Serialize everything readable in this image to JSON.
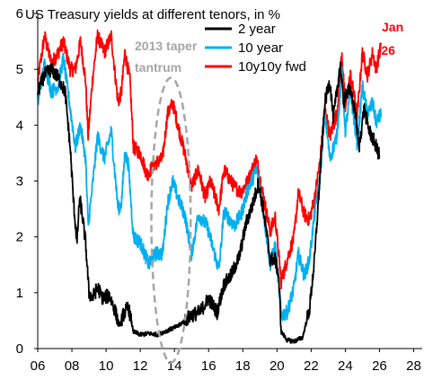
{
  "chart_data": {
    "type": "line",
    "title": "US Treasury yields at different tenors, in %",
    "xlabel": "",
    "ylabel": "",
    "xlim": [
      2006,
      2028.5
    ],
    "ylim": [
      0,
      6
    ],
    "x_ticks": [
      "06",
      "08",
      "10",
      "12",
      "14",
      "16",
      "18",
      "20",
      "22",
      "24",
      "26",
      "28"
    ],
    "y_ticks": [
      "0",
      "1",
      "2",
      "3",
      "4",
      "5",
      "6"
    ],
    "grid": false,
    "legend_position": "top-right",
    "series": [
      {
        "name": "2 year",
        "color": "#000000",
        "points": [
          [
            2006.0,
            4.6
          ],
          [
            2006.4,
            4.9
          ],
          [
            2006.8,
            5.0
          ],
          [
            2007.2,
            4.85
          ],
          [
            2007.6,
            4.6
          ],
          [
            2007.9,
            3.6
          ],
          [
            2008.1,
            2.6
          ],
          [
            2008.3,
            1.9
          ],
          [
            2008.45,
            2.7
          ],
          [
            2008.6,
            2.4
          ],
          [
            2008.8,
            1.9
          ],
          [
            2009.0,
            1.0
          ],
          [
            2009.2,
            0.9
          ],
          [
            2009.5,
            1.1
          ],
          [
            2009.8,
            0.9
          ],
          [
            2010.2,
            0.95
          ],
          [
            2010.5,
            0.7
          ],
          [
            2010.8,
            0.4
          ],
          [
            2011.0,
            0.6
          ],
          [
            2011.3,
            0.75
          ],
          [
            2011.6,
            0.3
          ],
          [
            2012.0,
            0.25
          ],
          [
            2012.5,
            0.27
          ],
          [
            2013.0,
            0.25
          ],
          [
            2013.4,
            0.3
          ],
          [
            2013.8,
            0.35
          ],
          [
            2014.2,
            0.4
          ],
          [
            2014.6,
            0.5
          ],
          [
            2015.0,
            0.6
          ],
          [
            2015.5,
            0.65
          ],
          [
            2016.0,
            0.9
          ],
          [
            2016.5,
            0.65
          ],
          [
            2016.9,
            1.15
          ],
          [
            2017.3,
            1.3
          ],
          [
            2017.8,
            1.65
          ],
          [
            2018.2,
            2.25
          ],
          [
            2018.6,
            2.6
          ],
          [
            2018.9,
            2.95
          ],
          [
            2019.2,
            2.5
          ],
          [
            2019.6,
            1.6
          ],
          [
            2019.9,
            1.6
          ],
          [
            2020.1,
            1.3
          ],
          [
            2020.25,
            0.3
          ],
          [
            2020.6,
            0.15
          ],
          [
            2021.0,
            0.13
          ],
          [
            2021.5,
            0.2
          ],
          [
            2021.9,
            0.7
          ],
          [
            2022.2,
            1.6
          ],
          [
            2022.5,
            3.0
          ],
          [
            2022.8,
            4.4
          ],
          [
            2023.1,
            4.8
          ],
          [
            2023.3,
            4.1
          ],
          [
            2023.7,
            5.1
          ],
          [
            2023.9,
            4.4
          ],
          [
            2024.2,
            4.7
          ],
          [
            2024.6,
            4.2
          ],
          [
            2024.8,
            3.6
          ],
          [
            2025.1,
            4.3
          ],
          [
            2025.4,
            3.9
          ],
          [
            2025.7,
            3.7
          ],
          [
            2026.0,
            3.45
          ]
        ]
      },
      {
        "name": "10 year",
        "color": "#00b0f0",
        "points": [
          [
            2006.0,
            4.4
          ],
          [
            2006.4,
            5.1
          ],
          [
            2006.8,
            4.6
          ],
          [
            2007.2,
            4.7
          ],
          [
            2007.5,
            5.2
          ],
          [
            2007.9,
            4.3
          ],
          [
            2008.2,
            3.6
          ],
          [
            2008.5,
            4.0
          ],
          [
            2008.8,
            3.4
          ],
          [
            2008.95,
            2.2
          ],
          [
            2009.2,
            2.9
          ],
          [
            2009.5,
            3.8
          ],
          [
            2009.9,
            3.4
          ],
          [
            2010.3,
            3.9
          ],
          [
            2010.7,
            2.5
          ],
          [
            2010.9,
            2.6
          ],
          [
            2011.1,
            3.5
          ],
          [
            2011.3,
            3.3
          ],
          [
            2011.6,
            2.0
          ],
          [
            2012.0,
            1.9
          ],
          [
            2012.5,
            1.5
          ],
          [
            2012.9,
            1.7
          ],
          [
            2013.3,
            1.7
          ],
          [
            2013.6,
            2.6
          ],
          [
            2013.9,
            3.0
          ],
          [
            2014.2,
            2.7
          ],
          [
            2014.6,
            2.4
          ],
          [
            2015.0,
            1.7
          ],
          [
            2015.4,
            2.4
          ],
          [
            2015.9,
            2.2
          ],
          [
            2016.3,
            1.75
          ],
          [
            2016.6,
            1.4
          ],
          [
            2016.9,
            2.45
          ],
          [
            2017.5,
            2.2
          ],
          [
            2017.9,
            2.4
          ],
          [
            2018.3,
            2.85
          ],
          [
            2018.8,
            3.2
          ],
          [
            2019.1,
            2.7
          ],
          [
            2019.6,
            1.5
          ],
          [
            2019.9,
            1.85
          ],
          [
            2020.25,
            0.6
          ],
          [
            2020.6,
            0.65
          ],
          [
            2021.0,
            1.1
          ],
          [
            2021.25,
            1.7
          ],
          [
            2021.6,
            1.3
          ],
          [
            2021.9,
            1.6
          ],
          [
            2022.2,
            2.4
          ],
          [
            2022.5,
            3.0
          ],
          [
            2022.8,
            4.2
          ],
          [
            2023.1,
            3.4
          ],
          [
            2023.5,
            3.8
          ],
          [
            2023.8,
            4.95
          ],
          [
            2024.0,
            3.9
          ],
          [
            2024.3,
            4.6
          ],
          [
            2024.7,
            3.65
          ],
          [
            2025.0,
            4.7
          ],
          [
            2025.3,
            4.2
          ],
          [
            2025.6,
            4.4
          ],
          [
            2025.8,
            4.05
          ],
          [
            2026.1,
            4.2
          ]
        ]
      },
      {
        "name": "10y10y fwd",
        "color": "#ff0000",
        "points": [
          [
            2006.0,
            4.8
          ],
          [
            2006.4,
            5.6
          ],
          [
            2006.8,
            5.1
          ],
          [
            2007.2,
            5.3
          ],
          [
            2007.5,
            5.5
          ],
          [
            2007.9,
            5.0
          ],
          [
            2008.2,
            5.0
          ],
          [
            2008.5,
            5.5
          ],
          [
            2008.8,
            4.8
          ],
          [
            2008.95,
            3.8
          ],
          [
            2009.2,
            4.8
          ],
          [
            2009.5,
            5.6
          ],
          [
            2009.9,
            5.3
          ],
          [
            2010.3,
            5.6
          ],
          [
            2010.7,
            4.4
          ],
          [
            2010.9,
            4.6
          ],
          [
            2011.1,
            5.3
          ],
          [
            2011.4,
            4.8
          ],
          [
            2011.6,
            3.6
          ],
          [
            2012.0,
            3.5
          ],
          [
            2012.4,
            3.1
          ],
          [
            2012.8,
            3.3
          ],
          [
            2013.3,
            3.4
          ],
          [
            2013.6,
            4.2
          ],
          [
            2013.9,
            4.4
          ],
          [
            2014.2,
            4.0
          ],
          [
            2014.6,
            3.5
          ],
          [
            2015.0,
            2.9
          ],
          [
            2015.4,
            3.2
          ],
          [
            2015.8,
            2.7
          ],
          [
            2016.1,
            3.0
          ],
          [
            2016.6,
            2.5
          ],
          [
            2016.9,
            3.2
          ],
          [
            2017.5,
            2.9
          ],
          [
            2017.9,
            2.8
          ],
          [
            2018.3,
            3.0
          ],
          [
            2018.8,
            3.4
          ],
          [
            2019.1,
            2.9
          ],
          [
            2019.6,
            2.1
          ],
          [
            2019.9,
            2.35
          ],
          [
            2020.25,
            1.2
          ],
          [
            2020.6,
            1.6
          ],
          [
            2021.0,
            2.0
          ],
          [
            2021.25,
            2.8
          ],
          [
            2021.6,
            2.4
          ],
          [
            2021.9,
            2.3
          ],
          [
            2022.2,
            2.7
          ],
          [
            2022.5,
            3.3
          ],
          [
            2022.8,
            4.3
          ],
          [
            2023.1,
            3.8
          ],
          [
            2023.5,
            4.2
          ],
          [
            2023.8,
            5.3
          ],
          [
            2024.0,
            4.3
          ],
          [
            2024.3,
            4.9
          ],
          [
            2024.7,
            4.2
          ],
          [
            2025.0,
            5.3
          ],
          [
            2025.3,
            4.9
          ],
          [
            2025.6,
            5.3
          ],
          [
            2025.8,
            5.0
          ],
          [
            2026.1,
            5.45
          ]
        ]
      }
    ],
    "annotations": [
      {
        "lines": [
          "2013 taper",
          "tantrum"
        ],
        "color": "#a6a6a6",
        "ellipse_center": [
          2013.8,
          2.3
        ],
        "ellipse_radius": [
          1.15,
          2.55
        ]
      },
      {
        "lines": [
          "Jan",
          "'26"
        ],
        "color": "#ff0000"
      }
    ]
  }
}
